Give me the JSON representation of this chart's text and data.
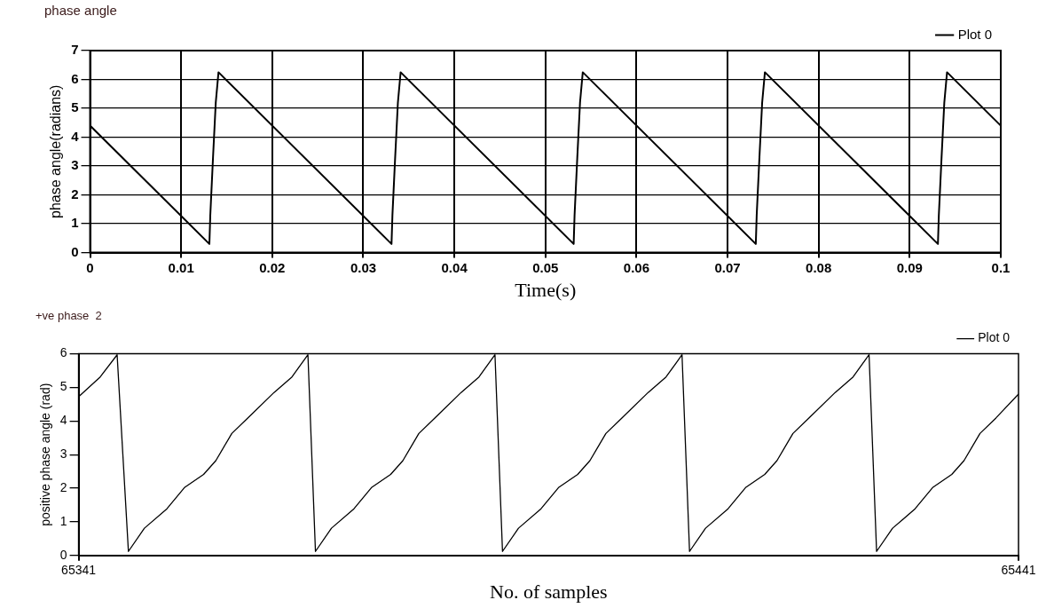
{
  "chart_data": [
    {
      "type": "line",
      "title": "phase angle",
      "xlabel": "Time(s)",
      "ylabel": "phase angle(radians)",
      "xlim": [
        0,
        0.1
      ],
      "xticks": [
        0,
        0.01,
        0.02,
        0.03,
        0.04,
        0.05,
        0.06,
        0.07,
        0.08,
        0.09,
        0.1
      ],
      "ylim": [
        0,
        7
      ],
      "yticks": [
        0,
        1,
        2,
        3,
        4,
        5,
        6,
        7
      ],
      "grid": true,
      "legend": "top right",
      "series": [
        {
          "name": "Plot 0",
          "color": "#000000",
          "x": [
            0,
            0.0131,
            0.0132,
            0.0135,
            0.0138,
            0.0141,
            0.0331,
            0.0332,
            0.0335,
            0.0338,
            0.0341,
            0.0531,
            0.0532,
            0.0535,
            0.0538,
            0.0541,
            0.0731,
            0.0732,
            0.0735,
            0.0738,
            0.0741,
            0.0931,
            0.0932,
            0.0935,
            0.0938,
            0.0941,
            0.1
          ],
          "values": [
            4.4,
            0.3,
            1.3,
            3.3,
            5.2,
            6.25,
            0.3,
            1.3,
            3.3,
            5.2,
            6.25,
            0.3,
            1.3,
            3.3,
            5.2,
            6.25,
            0.3,
            1.3,
            3.3,
            5.2,
            6.25,
            0.3,
            1.3,
            3.3,
            5.2,
            6.25,
            4.4
          ]
        }
      ]
    },
    {
      "type": "line",
      "title": "+ve phase  2",
      "xlabel": "No. of samples",
      "ylabel": "positive phase angle (rad)",
      "xlim": [
        65341,
        65441
      ],
      "xticks": [
        65341,
        65441
      ],
      "ylim": [
        0,
        6
      ],
      "yticks": [
        0,
        1,
        2,
        3,
        4,
        5,
        6
      ],
      "legend": "top right",
      "series": [
        {
          "name": "Plot 0",
          "color": "#000000",
          "x": [
            65341,
            65343.3,
            65345.1,
            65346.3,
            65348,
            65350.4,
            65352.3,
            65354.3,
            65355.6,
            65357.3,
            65359,
            65361.8,
            65363.7,
            65365.4,
            65366.2,
            65367.9,
            65370.3,
            65372.2,
            65374.2,
            65375.5,
            65377.2,
            65378.9,
            65381.7,
            65383.6,
            65385.3,
            65386.1,
            65387.8,
            65390.2,
            65392.1,
            65394.1,
            65395.4,
            65397.1,
            65398.8,
            65401.6,
            65403.5,
            65405.2,
            65406,
            65407.7,
            65410.1,
            65412,
            65414,
            65415.3,
            65417,
            65418.7,
            65421.5,
            65423.4,
            65425.1,
            65425.9,
            65427.6,
            65430,
            65431.9,
            65433.9,
            65435.2,
            65436.9,
            65438.6,
            65441
          ],
          "values": [
            4.72,
            5.31,
            5.97,
            0.12,
            0.81,
            1.39,
            2.03,
            2.41,
            2.82,
            3.63,
            4.09,
            4.85,
            5.31,
            5.97,
            0.12,
            0.81,
            1.39,
            2.03,
            2.41,
            2.82,
            3.63,
            4.09,
            4.85,
            5.31,
            5.97,
            0.12,
            0.81,
            1.39,
            2.03,
            2.41,
            2.82,
            3.63,
            4.09,
            4.85,
            5.31,
            5.97,
            0.12,
            0.81,
            1.39,
            2.03,
            2.41,
            2.82,
            3.63,
            4.09,
            4.85,
            5.31,
            5.97,
            0.12,
            0.81,
            1.39,
            2.03,
            2.41,
            2.82,
            3.63,
            4.09,
            4.8
          ]
        }
      ]
    }
  ]
}
